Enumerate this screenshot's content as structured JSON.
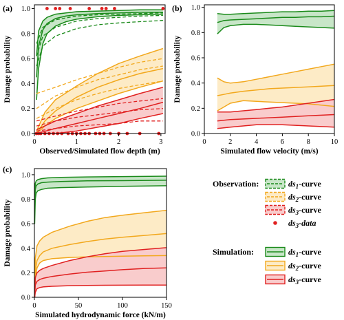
{
  "figure": {
    "legend": {
      "observation_title": "Observation:",
      "simulation_title": "Simulation:",
      "items": [
        {
          "group": "observation",
          "style": "dashed",
          "color": "#1a8a1a",
          "fill": "#c8e6c8",
          "prefix": "ds",
          "sub": "1",
          "suffix": "-curve"
        },
        {
          "group": "observation",
          "style": "dashed",
          "color": "#f2a81d",
          "fill": "#fdebc6",
          "prefix": "ds",
          "sub": "2",
          "suffix": "-curve"
        },
        {
          "group": "observation",
          "style": "dashed",
          "color": "#e02020",
          "fill": "#f9cccc",
          "prefix": "ds",
          "sub": "3",
          "suffix": "-curve"
        },
        {
          "group": "observation",
          "style": "dot",
          "color": "#e02020",
          "prefix": "ds",
          "sub": "3",
          "suffix": "-data"
        },
        {
          "group": "simulation",
          "style": "solid",
          "color": "#1a8a1a",
          "fill": "#c8e6c8",
          "prefix": "ds",
          "sub": "1",
          "suffix": "-curve"
        },
        {
          "group": "simulation",
          "style": "solid",
          "color": "#f2a81d",
          "fill": "#fdebc6",
          "prefix": "ds",
          "sub": "2",
          "suffix": "-curve"
        },
        {
          "group": "simulation",
          "style": "solid",
          "color": "#e02020",
          "fill": "#f9cccc",
          "prefix": "ds",
          "sub": "3",
          "suffix": "-curve"
        }
      ]
    },
    "colors": {
      "ds1": "#1a8a1a",
      "ds1_fill": "#c8e6c8",
      "ds2": "#f2a81d",
      "ds2_fill": "#fdebc6",
      "ds3": "#e02020",
      "ds3_fill": "#f9cccc"
    }
  },
  "chart_data": [
    {
      "id": "a",
      "panel_label": "(a)",
      "type": "line",
      "xlabel": "Observed/Simulated flow depth (m)",
      "ylabel": "Damage probability",
      "xlim": [
        0,
        3.1
      ],
      "ylim": [
        0,
        1.03
      ],
      "xticks": [
        0,
        1,
        2,
        3
      ],
      "yticks": [
        0,
        0.2,
        0.4,
        0.6,
        0.8,
        1.0
      ],
      "yticklabels": [
        "0.0",
        "0.2",
        "0.4",
        "0.6",
        "0.8",
        "1.0"
      ],
      "bands": [
        {
          "name": "ds1 simulation",
          "color": "#1a8a1a",
          "fill": "#c8e6c8",
          "x": [
            0.05,
            0.1,
            0.2,
            0.3,
            0.5,
            0.75,
            1.0,
            1.5,
            2.0,
            2.5,
            3.05
          ],
          "lower": [
            0.27,
            0.52,
            0.72,
            0.8,
            0.86,
            0.895,
            0.915,
            0.935,
            0.945,
            0.95,
            0.955
          ],
          "middle": [
            0.45,
            0.7,
            0.83,
            0.88,
            0.92,
            0.94,
            0.95,
            0.96,
            0.965,
            0.97,
            0.97
          ],
          "upper": [
            0.62,
            0.82,
            0.9,
            0.93,
            0.955,
            0.965,
            0.975,
            0.98,
            0.985,
            0.99,
            0.99
          ]
        },
        {
          "name": "ds1 observation",
          "color": "#1a8a1a",
          "dashed": true,
          "x": [
            0.05,
            0.2,
            0.5,
            1.0,
            1.5,
            2.0,
            2.5,
            3.05
          ],
          "lower": [
            0.54,
            0.7,
            0.78,
            0.84,
            0.87,
            0.885,
            0.895,
            0.905
          ],
          "middle": [
            0.62,
            0.78,
            0.85,
            0.9,
            0.92,
            0.93,
            0.94,
            0.945
          ],
          "upper": [
            0.72,
            0.85,
            0.91,
            0.94,
            0.95,
            0.955,
            0.96,
            0.965
          ]
        },
        {
          "name": "ds2 simulation",
          "color": "#f2a81d",
          "fill": "#fdebc6",
          "x": [
            0.05,
            0.25,
            0.5,
            1.0,
            1.5,
            2.0,
            2.5,
            3.05
          ],
          "lower": [
            0.0,
            0.06,
            0.12,
            0.2,
            0.26,
            0.32,
            0.37,
            0.42
          ],
          "middle": [
            0.0,
            0.1,
            0.18,
            0.29,
            0.37,
            0.43,
            0.48,
            0.52
          ],
          "upper": [
            0.02,
            0.17,
            0.27,
            0.38,
            0.48,
            0.56,
            0.62,
            0.68
          ]
        },
        {
          "name": "ds2 observation",
          "color": "#f2a81d",
          "dashed": true,
          "x": [
            0.05,
            0.5,
            1.0,
            1.5,
            2.0,
            2.5,
            3.05
          ],
          "lower": [
            0.12,
            0.2,
            0.27,
            0.32,
            0.36,
            0.39,
            0.42
          ],
          "middle": [
            0.2,
            0.3,
            0.37,
            0.43,
            0.47,
            0.51,
            0.54
          ],
          "upper": [
            0.32,
            0.37,
            0.43,
            0.48,
            0.53,
            0.57,
            0.6
          ]
        },
        {
          "name": "ds3 simulation",
          "color": "#e02020",
          "fill": "#f9cccc",
          "x": [
            0.05,
            0.5,
            1.0,
            1.5,
            2.0,
            2.5,
            3.05
          ],
          "lower": [
            0.0,
            0.0,
            0.02,
            0.05,
            0.08,
            0.12,
            0.16
          ],
          "middle": [
            0.0,
            0.04,
            0.08,
            0.12,
            0.16,
            0.2,
            0.25
          ],
          "upper": [
            0.03,
            0.1,
            0.16,
            0.22,
            0.27,
            0.32,
            0.37
          ]
        },
        {
          "name": "ds3 observation",
          "color": "#e02020",
          "dashed": true,
          "x": [
            0.05,
            0.5,
            1.0,
            1.5,
            2.0,
            2.5,
            3.05
          ],
          "lower": [
            0.02,
            0.04,
            0.06,
            0.07,
            0.08,
            0.1,
            0.1
          ],
          "middle": [
            0.06,
            0.1,
            0.13,
            0.15,
            0.17,
            0.19,
            0.2
          ],
          "upper": [
            0.1,
            0.14,
            0.18,
            0.21,
            0.24,
            0.26,
            0.28
          ]
        }
      ],
      "points": {
        "name": "ds3 data",
        "color": "#e02020",
        "x": [
          0.05,
          0.1,
          0.15,
          0.25,
          0.35,
          0.45,
          0.55,
          0.65,
          0.8,
          0.9,
          1.0,
          1.1,
          1.2,
          1.3,
          1.45,
          1.55,
          1.65,
          1.8,
          2.0,
          2.2,
          2.5,
          2.95,
          0.3,
          0.5,
          0.6,
          0.85,
          1.3,
          1.6,
          1.7,
          1.9,
          3.05
        ],
        "y": [
          0,
          0,
          0,
          0,
          0,
          0,
          0,
          0,
          0,
          0,
          0,
          0,
          0,
          0,
          0,
          0,
          0,
          0,
          0,
          0,
          0,
          0,
          1,
          1,
          1,
          1,
          1,
          1,
          1,
          1,
          1
        ]
      }
    },
    {
      "id": "b",
      "panel_label": "(b)",
      "type": "line",
      "xlabel": "Simulated flow velocity (m/s)",
      "ylabel": "Damage probability",
      "xlim": [
        0,
        10
      ],
      "ylim": [
        0,
        1.02
      ],
      "xticks": [
        0,
        2,
        4,
        6,
        8,
        10
      ],
      "yticks": [
        0,
        0.2,
        0.4,
        0.6,
        0.8,
        1.0
      ],
      "yticklabels": [
        "0.0",
        "0.2",
        "0.4",
        "0.6",
        "0.8",
        "1.0"
      ],
      "bands": [
        {
          "name": "ds1 simulation",
          "color": "#1a8a1a",
          "fill": "#c8e6c8",
          "x": [
            1,
            1.5,
            2,
            3,
            4,
            5,
            6,
            7,
            8,
            9,
            10
          ],
          "lower": [
            0.79,
            0.84,
            0.855,
            0.865,
            0.865,
            0.86,
            0.855,
            0.85,
            0.845,
            0.84,
            0.835
          ],
          "middle": [
            0.88,
            0.895,
            0.9,
            0.905,
            0.91,
            0.915,
            0.92,
            0.92,
            0.925,
            0.925,
            0.93
          ],
          "upper": [
            0.95,
            0.945,
            0.945,
            0.95,
            0.955,
            0.96,
            0.965,
            0.965,
            0.97,
            0.97,
            0.975
          ]
        },
        {
          "name": "ds2 simulation",
          "color": "#f2a81d",
          "fill": "#fdebc6",
          "x": [
            1,
            1.5,
            2,
            3,
            4,
            5,
            6,
            7,
            8,
            9,
            10
          ],
          "lower": [
            0.18,
            0.21,
            0.24,
            0.26,
            0.255,
            0.25,
            0.245,
            0.24,
            0.235,
            0.225,
            0.215
          ],
          "middle": [
            0.3,
            0.31,
            0.32,
            0.335,
            0.345,
            0.355,
            0.36,
            0.365,
            0.37,
            0.375,
            0.38
          ],
          "upper": [
            0.44,
            0.41,
            0.4,
            0.41,
            0.43,
            0.45,
            0.47,
            0.49,
            0.51,
            0.53,
            0.55
          ]
        },
        {
          "name": "ds3 simulation",
          "color": "#e02020",
          "fill": "#f9cccc",
          "x": [
            1,
            2,
            3,
            4,
            5,
            6,
            7,
            8,
            9,
            10
          ],
          "lower": [
            0.04,
            0.05,
            0.06,
            0.07,
            0.07,
            0.07,
            0.065,
            0.06,
            0.055,
            0.05
          ],
          "middle": [
            0.1,
            0.11,
            0.115,
            0.12,
            0.125,
            0.13,
            0.135,
            0.14,
            0.145,
            0.15
          ],
          "upper": [
            0.17,
            0.17,
            0.18,
            0.19,
            0.2,
            0.21,
            0.225,
            0.24,
            0.255,
            0.27
          ]
        }
      ]
    },
    {
      "id": "c",
      "panel_label": "(c)",
      "type": "line",
      "xlabel": "Simulated hydrodynamic force (kN/m)",
      "ylabel": "Damage probability",
      "xlim": [
        0,
        150
      ],
      "ylim": [
        0,
        1.05
      ],
      "xticks": [
        0,
        50,
        100,
        150
      ],
      "yticks": [
        0,
        0.2,
        0.4,
        0.6,
        0.8,
        1.0
      ],
      "yticklabels": [
        "0.0",
        "0.2",
        "0.4",
        "0.6",
        "0.8",
        "1.0"
      ],
      "bands": [
        {
          "name": "ds1 simulation",
          "color": "#1a8a1a",
          "fill": "#c8e6c8",
          "x": [
            0.3,
            1,
            2,
            4,
            8,
            15,
            30,
            60,
            100,
            150
          ],
          "lower": [
            0.6,
            0.8,
            0.85,
            0.87,
            0.88,
            0.89,
            0.895,
            0.9,
            0.905,
            0.91
          ],
          "middle": [
            0.7,
            0.88,
            0.91,
            0.925,
            0.935,
            0.94,
            0.945,
            0.95,
            0.952,
            0.955
          ],
          "upper": [
            0.8,
            0.93,
            0.95,
            0.96,
            0.968,
            0.974,
            0.978,
            0.982,
            0.985,
            0.988
          ]
        },
        {
          "name": "ds2 simulation",
          "color": "#f2a81d",
          "fill": "#fdebc6",
          "x": [
            0.3,
            1,
            3,
            6,
            10,
            20,
            40,
            60,
            80,
            100,
            125,
            150
          ],
          "lower": [
            0.0,
            0.15,
            0.24,
            0.28,
            0.3,
            0.315,
            0.325,
            0.33,
            0.333,
            0.336,
            0.338,
            0.34
          ],
          "middle": [
            0.0,
            0.22,
            0.3,
            0.34,
            0.37,
            0.4,
            0.43,
            0.455,
            0.475,
            0.49,
            0.505,
            0.52
          ],
          "upper": [
            0.05,
            0.32,
            0.42,
            0.46,
            0.49,
            0.53,
            0.58,
            0.62,
            0.65,
            0.67,
            0.69,
            0.71
          ]
        },
        {
          "name": "ds3 simulation",
          "color": "#e02020",
          "fill": "#f9cccc",
          "x": [
            0.3,
            1,
            3,
            6,
            10,
            20,
            40,
            60,
            80,
            100,
            125,
            150
          ],
          "lower": [
            0.0,
            0.04,
            0.07,
            0.08,
            0.085,
            0.09,
            0.095,
            0.097,
            0.098,
            0.099,
            0.1,
            0.1
          ],
          "middle": [
            0.0,
            0.1,
            0.13,
            0.145,
            0.155,
            0.17,
            0.19,
            0.205,
            0.215,
            0.225,
            0.235,
            0.24
          ],
          "upper": [
            0.03,
            0.16,
            0.2,
            0.22,
            0.235,
            0.26,
            0.3,
            0.33,
            0.355,
            0.375,
            0.39,
            0.405
          ]
        }
      ]
    }
  ]
}
